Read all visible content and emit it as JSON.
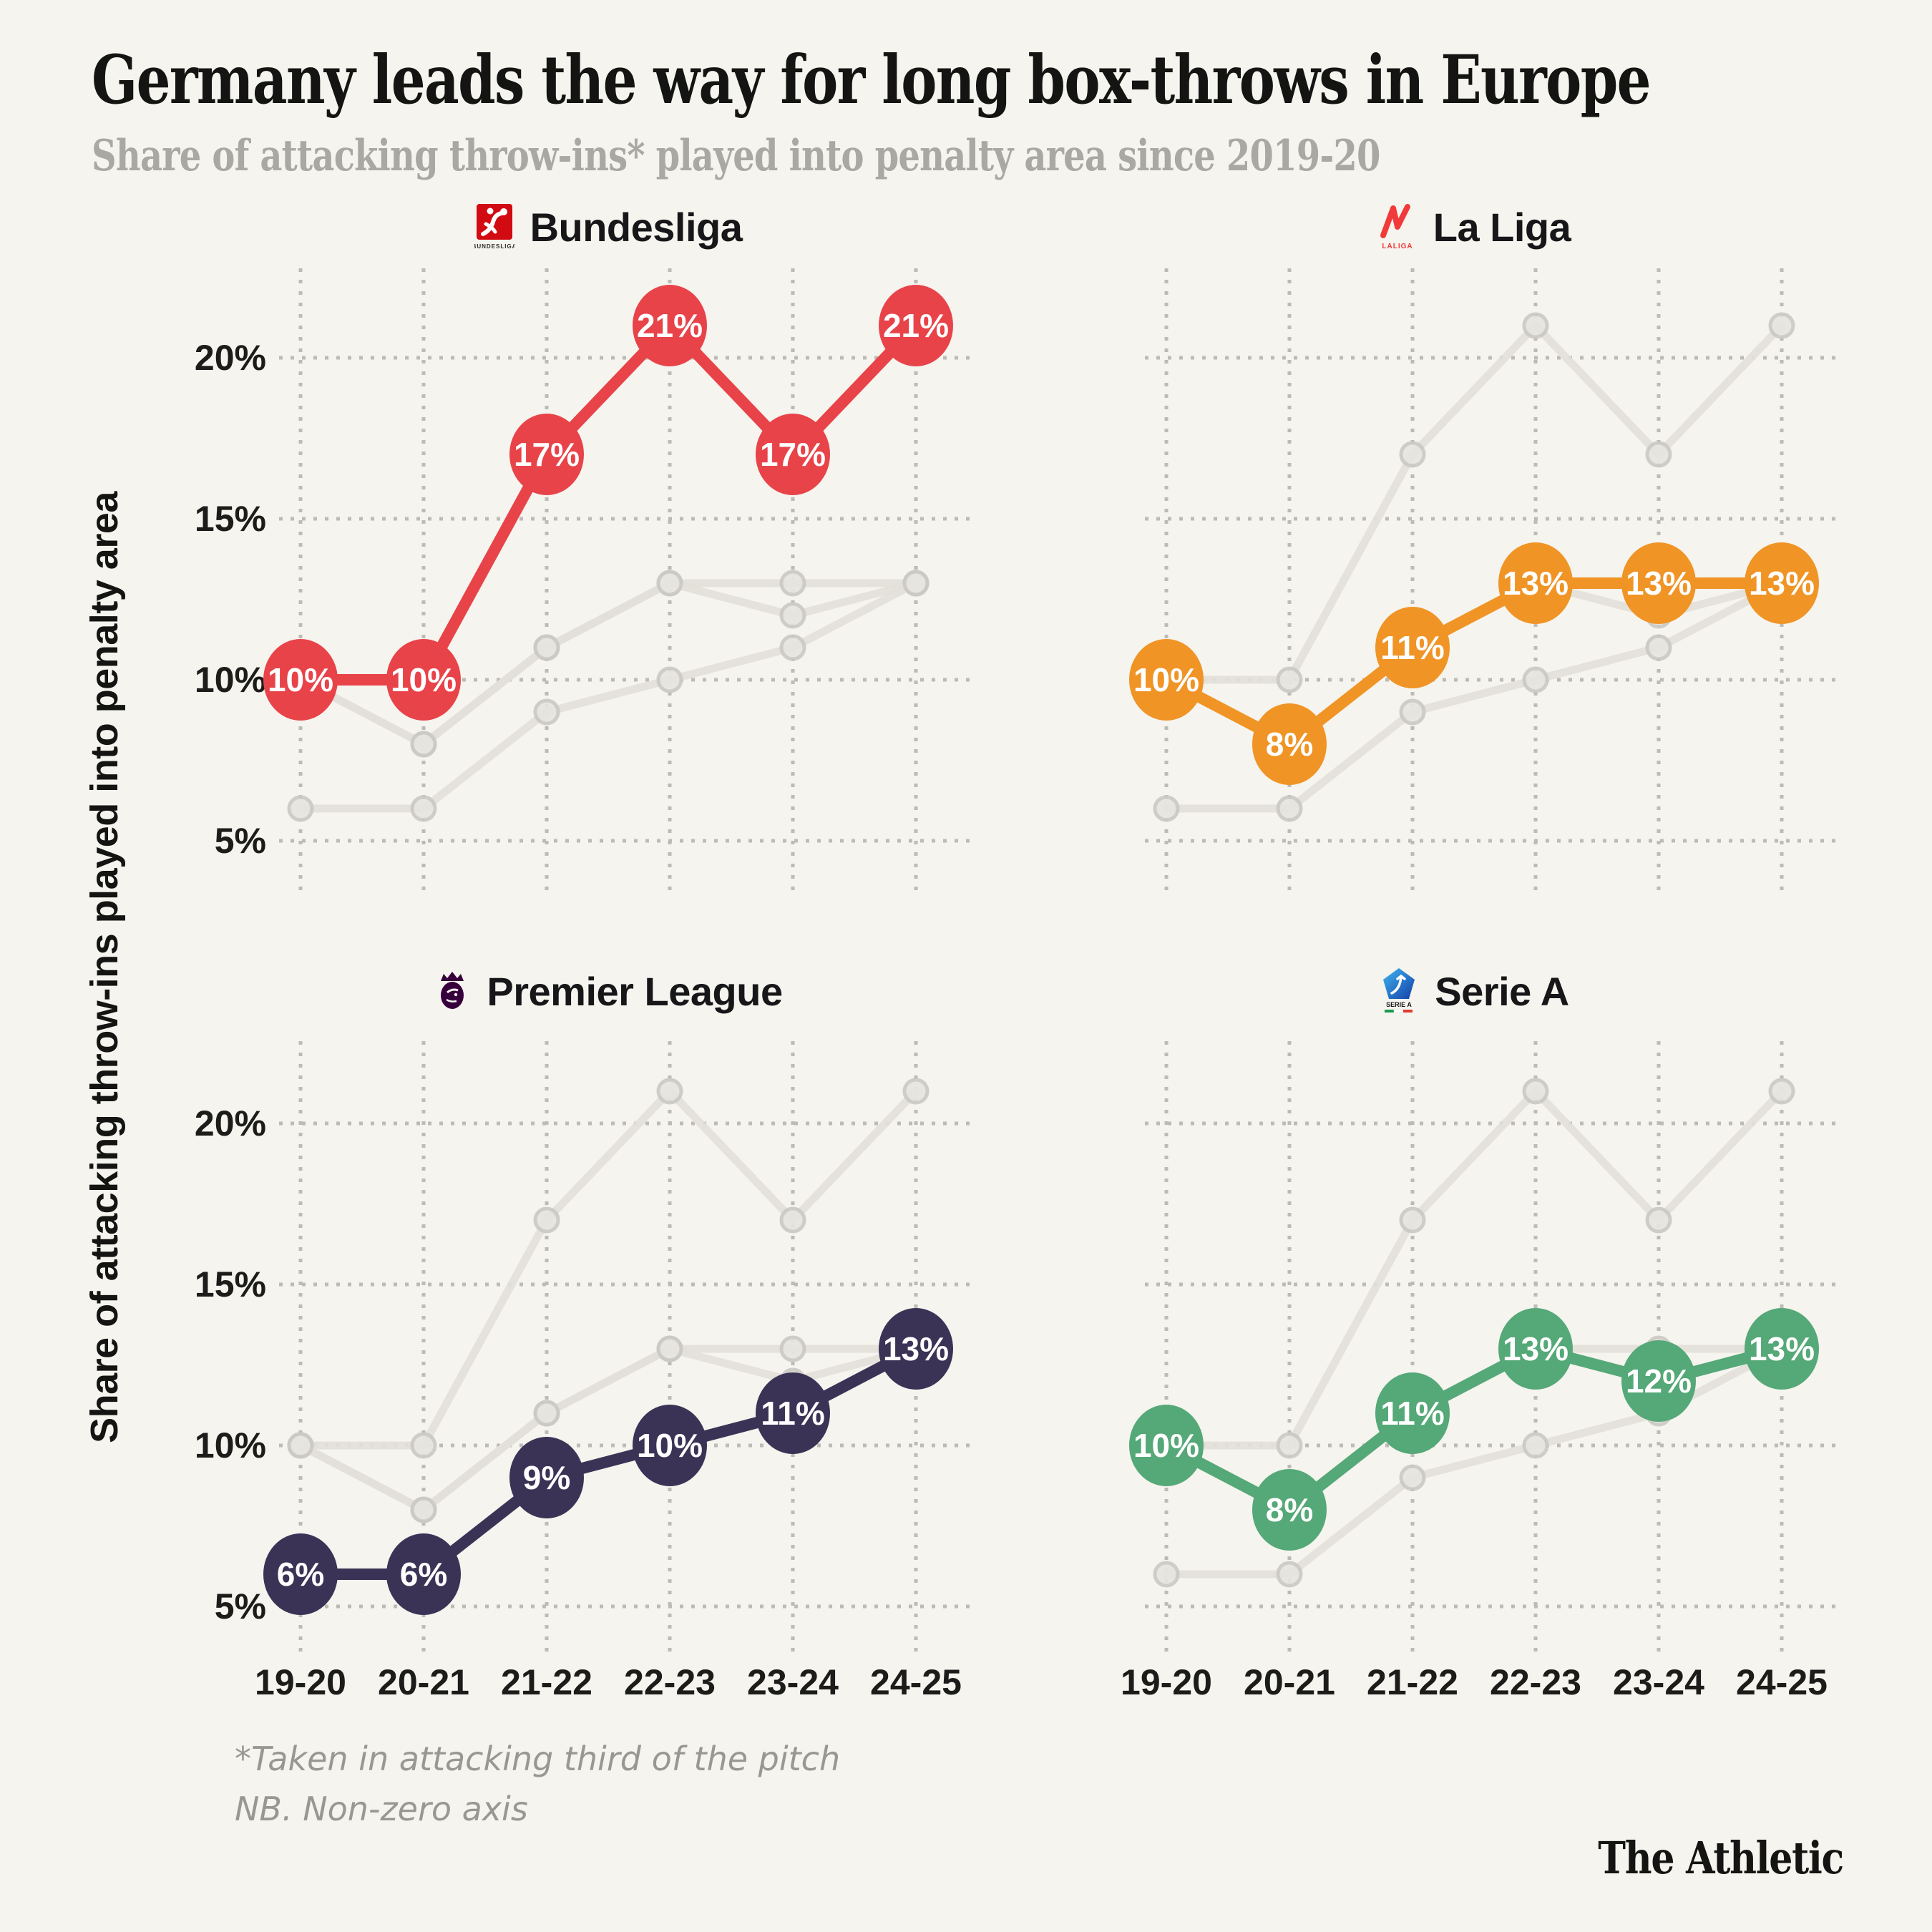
{
  "title": "Germany leads the way for long box-throws in Europe",
  "subtitle": "Share of attacking throw-ins* played into penalty area since 2019-20",
  "y_axis_label": "Share of attacking throw-ins played into penalty area",
  "footnotes": [
    "*Taken in attacking third of the pitch",
    "NB. Non-zero axis"
  ],
  "brand": "The Athletic",
  "colors": {
    "background": "#f5f4ee",
    "grid_dots": "#bcbbb5",
    "context_line": "#e2e0d9",
    "bundesliga": "#e84349",
    "la_liga": "#f09426",
    "premier_league": "#3b3356",
    "serie_a": "#55a877"
  },
  "chart_data": {
    "type": "line",
    "categories": [
      "19-20",
      "20-21",
      "21-22",
      "22-23",
      "23-24",
      "24-25"
    ],
    "ylabel": "Share of attacking throw-ins played into penalty area",
    "ylim": [
      4,
      23
    ],
    "yticks": [
      5,
      10,
      15,
      20
    ],
    "ytick_labels": [
      "5%",
      "10%",
      "15%",
      "20%"
    ],
    "grid": "dotted",
    "legend_position": "none",
    "point_label_format": "{v}%",
    "series": [
      {
        "name": "Bundesliga",
        "color": "#e84349",
        "values": [
          10,
          10,
          17,
          21,
          17,
          21
        ]
      },
      {
        "name": "La Liga",
        "color": "#f09426",
        "values": [
          10,
          8,
          11,
          13,
          13,
          13
        ]
      },
      {
        "name": "Premier League",
        "color": "#3b3356",
        "values": [
          6,
          6,
          9,
          10,
          11,
          13
        ]
      },
      {
        "name": "Serie A",
        "color": "#55a877",
        "values": [
          10,
          8,
          11,
          13,
          12,
          13
        ]
      }
    ],
    "panels": [
      {
        "league": "Bundesliga",
        "icon": "bundesliga-logo-icon",
        "logo_text": "BUNDESLIGA",
        "show_y_ticks": true,
        "show_x_ticks": false
      },
      {
        "league": "La Liga",
        "icon": "laliga-logo-icon",
        "logo_text": "LALIGA",
        "show_y_ticks": false,
        "show_x_ticks": false
      },
      {
        "league": "Premier League",
        "icon": "premier-league-logo-icon",
        "logo_text": "",
        "show_y_ticks": true,
        "show_x_ticks": true
      },
      {
        "league": "Serie A",
        "icon": "serie-a-logo-icon",
        "logo_text": "SERIE A",
        "show_y_ticks": false,
        "show_x_ticks": true
      }
    ]
  }
}
